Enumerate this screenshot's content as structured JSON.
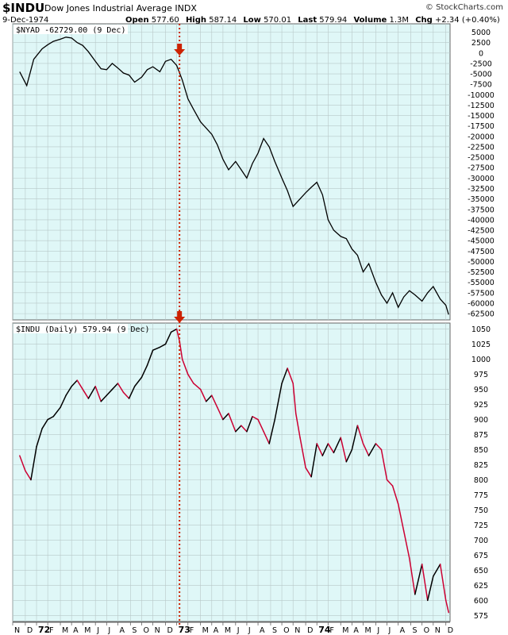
{
  "header": {
    "symbol": "$INDU",
    "name": "Dow Jones Industrial Average",
    "exchange": "INDX",
    "date": "9-Dec-1974",
    "logo": "© StockCharts.com",
    "open_label": "Open",
    "open": "577.60",
    "high_label": "High",
    "high": "587.14",
    "low_label": "Low",
    "low": "570.01",
    "last_label": "Last",
    "last": "579.94",
    "volume_label": "Volume",
    "volume": "1.3M",
    "chg_label": "Chg",
    "chg": "+2.34 (+0.40%)"
  },
  "colors": {
    "background": "#dff7f7",
    "grid": "#b8c8c8",
    "nyad_line": "#000000",
    "indu_up": "#000000",
    "indu_down": "#cc0033",
    "marker": "#cc2200"
  },
  "chart_data": [
    {
      "type": "line",
      "legend": "$NYAD -62729.00 (9 Dec)",
      "ylim": [
        -64000,
        7000
      ],
      "yticks": [
        5000,
        2500,
        0,
        -2500,
        -5000,
        -7500,
        -10000,
        -12500,
        -15000,
        -17500,
        -20000,
        -22500,
        -25000,
        -27500,
        -30000,
        -32500,
        -35000,
        -37500,
        -40000,
        -42500,
        -45000,
        -47500,
        -50000,
        -52500,
        -55000,
        -57500,
        -60000,
        -62500
      ],
      "series": [
        {
          "x": [
            1971.88,
            1971.93,
            1971.98,
            1972.04,
            1972.08,
            1972.12,
            1972.17,
            1972.21,
            1972.25,
            1972.29,
            1972.33,
            1972.37,
            1972.42,
            1972.46,
            1972.5,
            1972.54,
            1972.58,
            1972.62,
            1972.66,
            1972.7,
            1972.75,
            1972.79,
            1972.83,
            1972.88,
            1972.92,
            1972.96,
            1973.0,
            1973.04,
            1973.08,
            1973.12,
            1973.17,
            1973.21,
            1973.25,
            1973.29,
            1973.33,
            1973.37,
            1973.42,
            1973.46,
            1973.5,
            1973.54,
            1973.58,
            1973.62,
            1973.66,
            1973.7,
            1973.75,
            1973.79,
            1973.83,
            1973.88,
            1973.92,
            1973.96,
            1974.0,
            1974.04,
            1974.08,
            1974.12,
            1974.17,
            1974.21,
            1974.25,
            1974.29,
            1974.33,
            1974.37,
            1974.42,
            1974.46,
            1974.5,
            1974.54,
            1974.58,
            1974.62,
            1974.66,
            1974.7,
            1974.75,
            1974.79,
            1974.83,
            1974.88,
            1974.92,
            1974.94
          ],
          "values": [
            -4500,
            -7800,
            -1500,
            1000,
            2000,
            2800,
            3300,
            3800,
            3600,
            2500,
            1800,
            300,
            -2000,
            -3800,
            -4000,
            -2500,
            -3600,
            -4800,
            -5300,
            -7000,
            -5800,
            -4000,
            -3300,
            -4500,
            -2000,
            -1500,
            -3000,
            -6500,
            -11000,
            -13500,
            -16500,
            -18000,
            -19500,
            -22000,
            -25500,
            -28000,
            -26000,
            -28000,
            -30000,
            -26500,
            -24000,
            -20500,
            -22500,
            -26000,
            -30000,
            -33000,
            -36800,
            -35000,
            -33500,
            -32200,
            -31000,
            -34000,
            -40000,
            -42500,
            -44000,
            -44500,
            -47000,
            -48500,
            -52500,
            -50500,
            -55000,
            -58000,
            -60000,
            -57500,
            -61000,
            -58500,
            -57000,
            -58000,
            -59500,
            -57500,
            -56000,
            -59000,
            -60500,
            -62729
          ]
        }
      ]
    },
    {
      "type": "line",
      "legend": "$INDU (Daily) 579.94 (9 Dec)",
      "ylim": [
        565,
        1060
      ],
      "yticks": [
        1050,
        1025,
        1000,
        975,
        950,
        925,
        900,
        875,
        850,
        825,
        800,
        775,
        750,
        725,
        700,
        675,
        650,
        625,
        600,
        575
      ],
      "series": [
        {
          "x": [
            1971.88,
            1971.92,
            1971.96,
            1972.0,
            1972.04,
            1972.08,
            1972.12,
            1972.17,
            1972.21,
            1972.25,
            1972.29,
            1972.33,
            1972.37,
            1972.42,
            1972.46,
            1972.5,
            1972.54,
            1972.58,
            1972.62,
            1972.66,
            1972.7,
            1972.75,
            1972.79,
            1972.83,
            1972.88,
            1972.92,
            1972.96,
            1973.0,
            1973.02,
            1973.04,
            1973.08,
            1973.12,
            1973.17,
            1973.21,
            1973.25,
            1973.29,
            1973.33,
            1973.37,
            1973.42,
            1973.46,
            1973.5,
            1973.54,
            1973.58,
            1973.62,
            1973.66,
            1973.7,
            1973.75,
            1973.79,
            1973.83,
            1973.85,
            1973.88,
            1973.92,
            1973.96,
            1974.0,
            1974.04,
            1974.08,
            1974.12,
            1974.17,
            1974.21,
            1974.25,
            1974.29,
            1974.33,
            1974.37,
            1974.42,
            1974.46,
            1974.5,
            1974.54,
            1974.58,
            1974.62,
            1974.66,
            1974.7,
            1974.75,
            1974.79,
            1974.83,
            1974.88,
            1974.92,
            1974.94
          ],
          "values": [
            840,
            815,
            800,
            855,
            885,
            900,
            905,
            920,
            940,
            955,
            965,
            950,
            935,
            955,
            930,
            940,
            950,
            960,
            945,
            935,
            955,
            970,
            990,
            1015,
            1020,
            1025,
            1045,
            1050,
            1030,
            1000,
            975,
            960,
            950,
            930,
            940,
            920,
            900,
            910,
            880,
            890,
            880,
            905,
            900,
            880,
            860,
            900,
            960,
            985,
            960,
            910,
            870,
            820,
            805,
            860,
            840,
            860,
            845,
            870,
            830,
            850,
            890,
            860,
            840,
            860,
            850,
            800,
            790,
            760,
            715,
            670,
            610,
            660,
            600,
            640,
            660,
            600,
            580
          ]
        }
      ]
    }
  ],
  "x_axis": {
    "labels": [
      "N",
      "D",
      "72",
      "F",
      "M",
      "A",
      "M",
      "J",
      "J",
      "A",
      "S",
      "O",
      "N",
      "D",
      "73",
      "F",
      "M",
      "A",
      "M",
      "J",
      "J",
      "A",
      "S",
      "O",
      "N",
      "D",
      "74",
      "F",
      "M",
      "A",
      "M",
      "J",
      "J",
      "A",
      "S",
      "O",
      "N",
      "D"
    ],
    "values": [
      1971.83,
      1971.92,
      1972.0,
      1972.08,
      1972.17,
      1972.25,
      1972.33,
      1972.42,
      1972.5,
      1972.58,
      1972.67,
      1972.75,
      1972.83,
      1972.92,
      1973.0,
      1973.08,
      1973.17,
      1973.25,
      1973.33,
      1973.42,
      1973.5,
      1973.58,
      1973.67,
      1973.75,
      1973.83,
      1973.92,
      1974.0,
      1974.08,
      1974.17,
      1974.25,
      1974.33,
      1974.42,
      1974.5,
      1974.58,
      1974.67,
      1974.75,
      1974.83,
      1974.92
    ],
    "bold": [
      "72",
      "73",
      "74"
    ]
  },
  "marker_date": 1973.02
}
